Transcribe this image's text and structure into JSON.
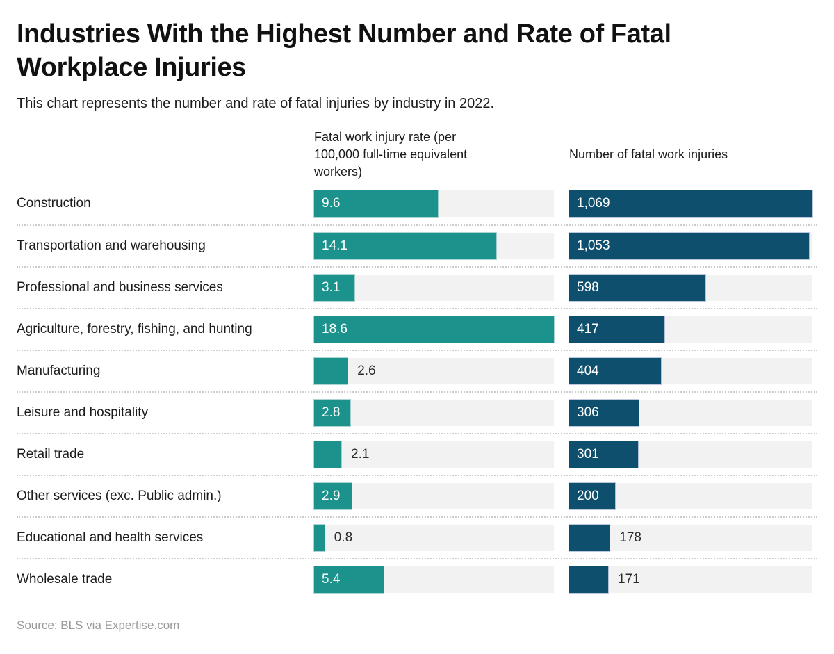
{
  "header": {
    "title": "Industries With the Highest Number and Rate of Fatal\nWorkplace Injuries",
    "subtitle": "This chart represents the number and rate of fatal injuries by industry in 2022."
  },
  "columns": {
    "rate_header": "Fatal work injury rate (per\n100,000 full-time equivalent\nworkers)",
    "count_header": "Number of fatal work injuries"
  },
  "footer": {
    "source": "Source: BLS via Expertise.com"
  },
  "colors": {
    "rate_bar": "#1c928c",
    "count_bar": "#0f4f6e",
    "track": "#f2f2f2",
    "inside_label": "#ffffff",
    "outside_label": "#2b2b2b",
    "separator": "#cccccc",
    "source_text": "#999999"
  },
  "chart_data": {
    "type": "bar",
    "orientation": "horizontal",
    "title": "Industries With the Highest Number and Rate of Fatal Workplace Injuries",
    "subtitle": "This chart represents the number and rate of fatal injuries by industry in 2022.",
    "categories": [
      "Construction",
      "Transportation and warehousing",
      "Professional and business services",
      "Agriculture, forestry, fishing, and hunting",
      "Manufacturing",
      "Leisure and hospitality",
      "Retail trade",
      "Other services (exc. Public admin.)",
      "Educational and health services",
      "Wholesale trade"
    ],
    "series": [
      {
        "name": "Fatal work injury rate (per 100,000 full-time equivalent workers)",
        "values": [
          9.6,
          14.1,
          3.1,
          18.6,
          2.6,
          2.8,
          2.1,
          2.9,
          0.8,
          5.4
        ],
        "labels": [
          "9.6",
          "14.1",
          "3.1",
          "18.6",
          "2.6",
          "2.8",
          "2.1",
          "2.9",
          "0.8",
          "5.4"
        ],
        "axis_range": [
          0,
          18.6
        ],
        "color": "#1c928c"
      },
      {
        "name": "Number of fatal work injuries",
        "values": [
          1069,
          1053,
          598,
          417,
          404,
          306,
          301,
          200,
          178,
          171
        ],
        "labels": [
          "1,069",
          "1,053",
          "598",
          "417",
          "404",
          "306",
          "301",
          "200",
          "178",
          "171"
        ],
        "axis_range": [
          0,
          1069
        ],
        "color": "#0f4f6e"
      }
    ],
    "grid": false,
    "legend_position": "column-headers",
    "source": "Source: BLS via Expertise.com"
  }
}
